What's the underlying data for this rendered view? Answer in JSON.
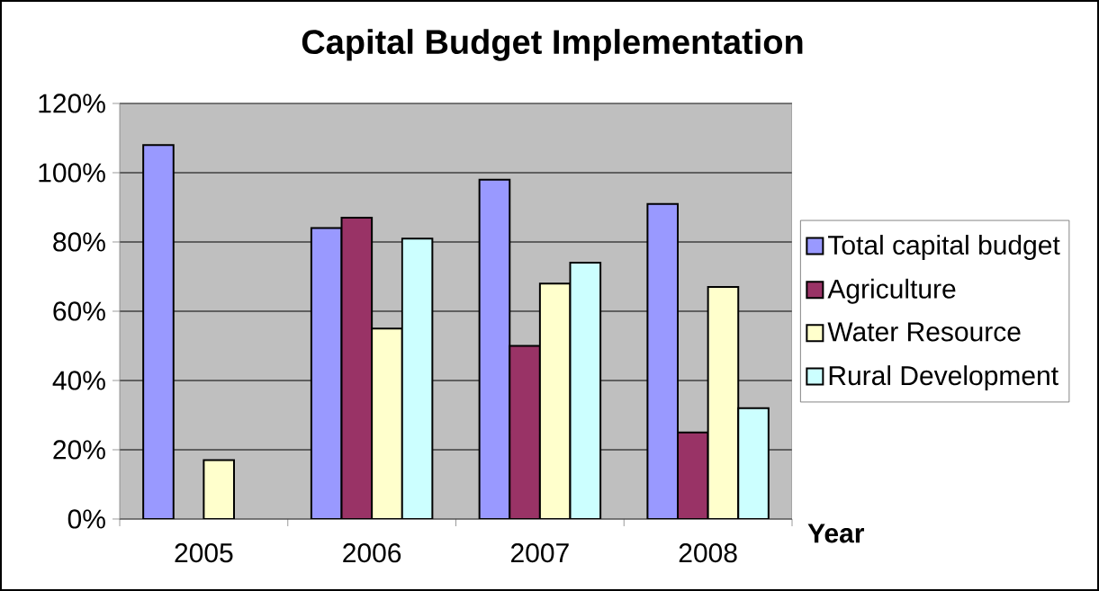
{
  "chart_data": {
    "type": "bar",
    "title": "Capital Budget Implementation",
    "xlabel": "Year",
    "categories": [
      "2005",
      "2006",
      "2007",
      "2008"
    ],
    "series": [
      {
        "name": "Total capital budget",
        "color": "#9999ff",
        "values": [
          108,
          84,
          98,
          91
        ]
      },
      {
        "name": "Agriculture",
        "color": "#993366",
        "values": [
          null,
          87,
          50,
          25
        ]
      },
      {
        "name": "Water Resource",
        "color": "#ffffcc",
        "values": [
          17,
          55,
          68,
          67
        ]
      },
      {
        "name": "Rural Development",
        "color": "#ccffff",
        "values": [
          null,
          81,
          74,
          32
        ]
      }
    ],
    "ylim": [
      0,
      120
    ],
    "yticks": [
      {
        "value": 0,
        "label": "0%"
      },
      {
        "value": 20,
        "label": "20%"
      },
      {
        "value": 40,
        "label": "40%"
      },
      {
        "value": 60,
        "label": "60%"
      },
      {
        "value": 80,
        "label": "80%"
      },
      {
        "value": 100,
        "label": "100%"
      },
      {
        "value": 120,
        "label": "120%"
      }
    ],
    "grid": "y",
    "legend": "right"
  }
}
